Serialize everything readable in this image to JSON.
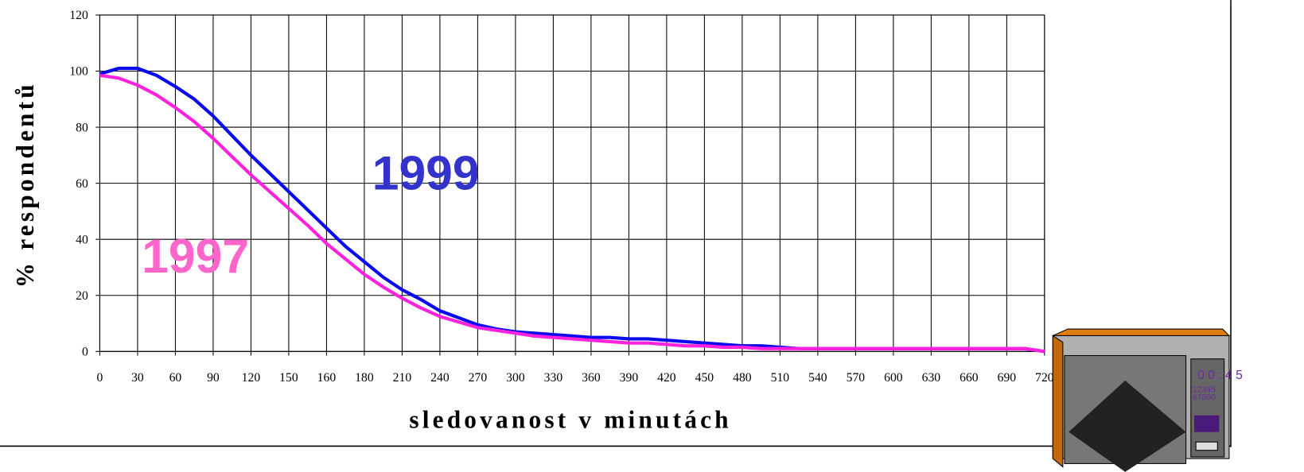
{
  "chart_data": {
    "type": "line",
    "y_label": "% respondentů",
    "x_label": "sledovanost v minutách",
    "x": [
      0,
      0.5,
      1,
      1.5,
      2,
      2.5,
      3,
      3.5,
      4,
      4.5,
      5,
      5.5,
      6,
      6.5,
      7,
      7.5,
      8,
      8.5,
      9,
      9.5,
      10,
      10.5,
      11,
      11.5,
      12,
      12.5,
      13,
      13.5,
      14,
      14.5,
      15,
      15.5,
      16,
      16.5,
      17,
      17.5,
      18,
      18.5,
      19,
      19.5,
      20,
      20.5,
      21,
      21.5,
      22,
      22.5,
      23,
      23.5,
      24,
      24.5,
      25
    ],
    "series": [
      {
        "name": "1999",
        "color": "#0a0aee",
        "label_color": "#3333cc",
        "values": [
          99,
          101,
          101,
          98.5,
          94.5,
          90,
          84,
          77,
          70,
          63.5,
          57,
          50.5,
          44,
          37.5,
          32,
          26.5,
          22,
          18.5,
          14.5,
          12,
          9.5,
          8,
          7,
          6.5,
          6,
          5.5,
          5,
          5,
          4.5,
          4.5,
          4,
          3.5,
          3,
          2.5,
          2,
          2,
          1.5,
          1,
          1,
          1,
          1,
          1,
          1,
          1,
          1,
          1,
          1,
          1,
          1,
          1,
          0
        ]
      },
      {
        "name": "1997",
        "color": "#ff22dd",
        "label_color": "#ff66cc",
        "values": [
          98.5,
          97.5,
          95,
          91.5,
          87,
          82,
          76,
          69.5,
          63,
          57,
          51,
          45,
          38.5,
          33,
          27.5,
          23,
          19,
          15.5,
          12.5,
          10.5,
          8.5,
          7.5,
          6.5,
          5.5,
          5,
          4.5,
          4,
          3.5,
          3,
          3,
          2.5,
          2,
          2,
          1.5,
          1.5,
          1,
          1,
          1,
          1,
          1,
          1,
          1,
          1,
          1,
          1,
          1,
          1,
          1,
          1,
          1,
          0
        ]
      }
    ],
    "xlim": [
      0,
      25
    ],
    "xticks": [
      {
        "value": 0,
        "label": "0"
      },
      {
        "value": 1,
        "label": "30"
      },
      {
        "value": 2,
        "label": "60"
      },
      {
        "value": 3,
        "label": "90"
      },
      {
        "value": 4,
        "label": "120"
      },
      {
        "value": 5,
        "label": "150"
      },
      {
        "value": 6,
        "label": "160"
      },
      {
        "value": 7,
        "label": "180"
      },
      {
        "value": 8,
        "label": "210"
      },
      {
        "value": 9,
        "label": "240"
      },
      {
        "value": 10,
        "label": "270"
      },
      {
        "value": 11,
        "label": "300"
      },
      {
        "value": 12,
        "label": "330"
      },
      {
        "value": 13,
        "label": "360"
      },
      {
        "value": 14,
        "label": "390"
      },
      {
        "value": 15,
        "label": "420"
      },
      {
        "value": 16,
        "label": "450"
      },
      {
        "value": 17,
        "label": "480"
      },
      {
        "value": 18,
        "label": "510"
      },
      {
        "value": 19,
        "label": "540"
      },
      {
        "value": 20,
        "label": "570"
      },
      {
        "value": 21,
        "label": "600"
      },
      {
        "value": 22,
        "label": "630"
      },
      {
        "value": 23,
        "label": "660"
      },
      {
        "value": 24,
        "label": "690"
      },
      {
        "value": 25,
        "label": "720"
      }
    ],
    "ylim": [
      0,
      120
    ],
    "yticks": [
      0,
      20,
      40,
      60,
      80,
      100,
      120
    ],
    "grid": true
  },
  "tv": {
    "clock": "0 0 : 4 5",
    "keypad_top": "12345",
    "keypad_bottom": "67890"
  }
}
